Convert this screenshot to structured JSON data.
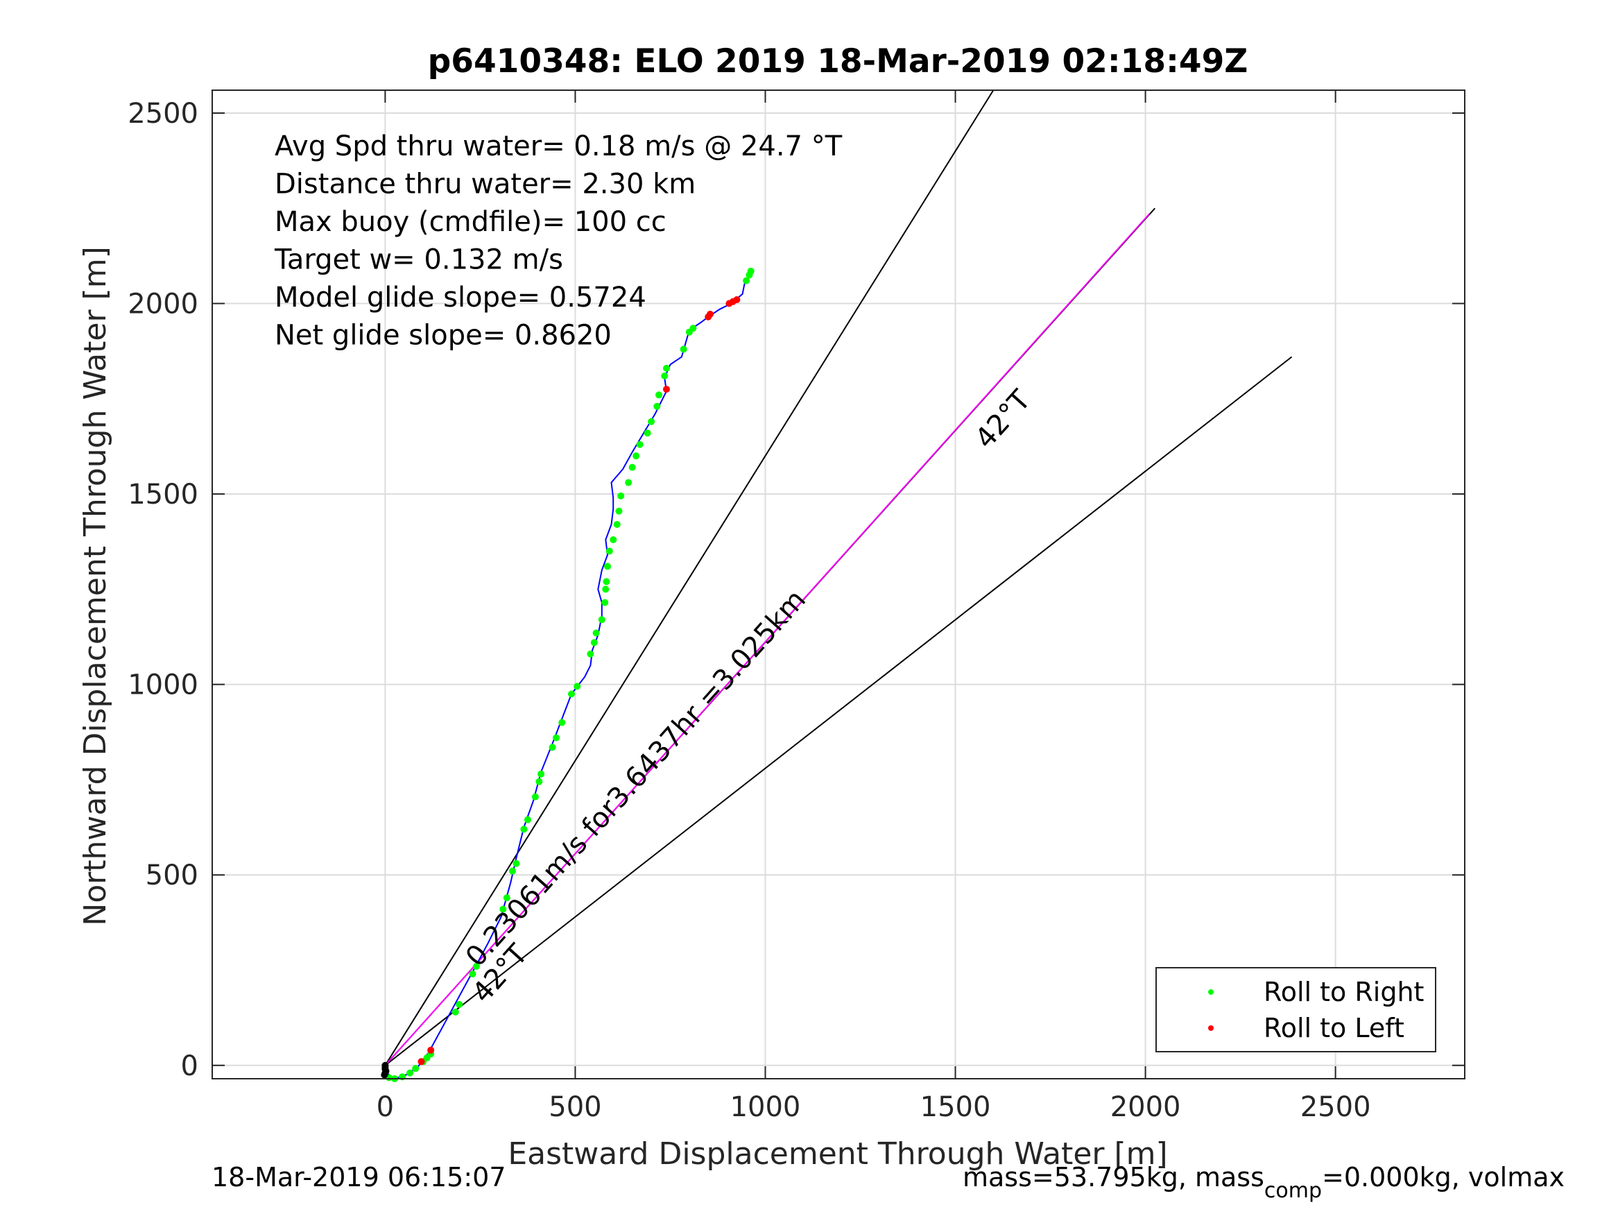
{
  "chart_data": {
    "type": "line",
    "title": "p6410348: ELO 2019 18-Mar-2019 02:18:49Z",
    "xlabel": "Eastward Displacement Through Water [m]",
    "ylabel": "Northward Displacement Through Water [m]",
    "xlim": [
      -455,
      2840
    ],
    "ylim": [
      -35,
      2560
    ],
    "xticks": [
      0,
      500,
      1000,
      1500,
      2000,
      2500
    ],
    "yticks": [
      0,
      500,
      1000,
      1500,
      2000,
      2500
    ],
    "grid": true,
    "legend": {
      "placement": "bottom-right",
      "entries": [
        "Roll to Right",
        "Roll to Left"
      ]
    },
    "annotations": [
      "Avg Spd thru water=  0.18 m/s @  24.7 °T",
      "Distance thru water=  2.30 km",
      "Max buoy (cmdfile)= 100 cc",
      "Target w= 0.132 m/s",
      "Model glide slope= 0.5724",
      "Net glide slope= 0.8620"
    ],
    "rays": [
      {
        "color": "#000000",
        "to": [
          1600,
          2560
        ]
      },
      {
        "color": "#000000",
        "to": [
          2025,
          2250
        ]
      },
      {
        "color": "#000000",
        "to": [
          2385,
          1860
        ]
      },
      {
        "color": "#ff00ff",
        "to": [
          2010,
          2235
        ]
      }
    ],
    "ray_labels": [
      {
        "text": "0.23061m/s for3.6437hr =3.025km",
        "at": [
          245,
          255
        ],
        "angle_deg": 48.2
      },
      {
        "text": "42°T",
        "at": [
          1585,
          1615
        ],
        "angle_deg": 48.2
      },
      {
        "text": "42°T",
        "at": [
          262,
          160
        ],
        "angle_deg": 48.2
      }
    ],
    "series": [
      {
        "name": "track",
        "color": "#0000ff",
        "points": [
          [
            0,
            0
          ],
          [
            5,
            -20
          ],
          [
            25,
            -35
          ],
          [
            55,
            -25
          ],
          [
            85,
            -5
          ],
          [
            115,
            35
          ],
          [
            145,
            90
          ],
          [
            175,
            145
          ],
          [
            205,
            200
          ],
          [
            235,
            255
          ],
          [
            270,
            320
          ],
          [
            305,
            390
          ],
          [
            330,
            480
          ],
          [
            345,
            545
          ],
          [
            365,
            625
          ],
          [
            390,
            695
          ],
          [
            410,
            770
          ],
          [
            440,
            845
          ],
          [
            465,
            910
          ],
          [
            490,
            975
          ],
          [
            525,
            1020
          ],
          [
            540,
            1050
          ],
          [
            545,
            1090
          ],
          [
            560,
            1130
          ],
          [
            570,
            1180
          ],
          [
            570,
            1215
          ],
          [
            560,
            1250
          ],
          [
            570,
            1300
          ],
          [
            585,
            1340
          ],
          [
            580,
            1380
          ],
          [
            595,
            1420
          ],
          [
            600,
            1460
          ],
          [
            600,
            1490
          ],
          [
            595,
            1530
          ],
          [
            625,
            1565
          ],
          [
            650,
            1610
          ],
          [
            680,
            1660
          ],
          [
            710,
            1710
          ],
          [
            740,
            1770
          ],
          [
            735,
            1805
          ],
          [
            750,
            1840
          ],
          [
            780,
            1860
          ],
          [
            790,
            1895
          ],
          [
            800,
            1930
          ],
          [
            830,
            1950
          ],
          [
            850,
            1965
          ],
          [
            880,
            1985
          ],
          [
            910,
            2000
          ],
          [
            940,
            2025
          ],
          [
            945,
            2050
          ],
          [
            955,
            2070
          ],
          [
            960,
            2085
          ]
        ]
      },
      {
        "name": "Roll to Right",
        "color": "#00ff00",
        "points": [
          [
            10,
            -32
          ],
          [
            25,
            -35
          ],
          [
            45,
            -30
          ],
          [
            65,
            -20
          ],
          [
            80,
            -8
          ],
          [
            100,
            10
          ],
          [
            110,
            20
          ],
          [
            120,
            30
          ],
          [
            185,
            140
          ],
          [
            195,
            160
          ],
          [
            230,
            240
          ],
          [
            240,
            260
          ],
          [
            310,
            410
          ],
          [
            320,
            440
          ],
          [
            335,
            510
          ],
          [
            345,
            530
          ],
          [
            365,
            620
          ],
          [
            375,
            645
          ],
          [
            395,
            705
          ],
          [
            405,
            745
          ],
          [
            410,
            765
          ],
          [
            440,
            835
          ],
          [
            450,
            860
          ],
          [
            465,
            900
          ],
          [
            490,
            975
          ],
          [
            505,
            995
          ],
          [
            540,
            1080
          ],
          [
            550,
            1110
          ],
          [
            555,
            1135
          ],
          [
            570,
            1170
          ],
          [
            578,
            1215
          ],
          [
            580,
            1250
          ],
          [
            582,
            1270
          ],
          [
            585,
            1310
          ],
          [
            590,
            1350
          ],
          [
            600,
            1380
          ],
          [
            610,
            1420
          ],
          [
            615,
            1455
          ],
          [
            620,
            1495
          ],
          [
            640,
            1530
          ],
          [
            650,
            1570
          ],
          [
            660,
            1600
          ],
          [
            670,
            1630
          ],
          [
            690,
            1660
          ],
          [
            700,
            1690
          ],
          [
            715,
            1730
          ],
          [
            720,
            1760
          ],
          [
            735,
            1810
          ],
          [
            740,
            1830
          ],
          [
            785,
            1880
          ],
          [
            800,
            1925
          ],
          [
            810,
            1935
          ],
          [
            950,
            2060
          ],
          [
            958,
            2075
          ],
          [
            962,
            2085
          ]
        ]
      },
      {
        "name": "Roll to Left",
        "color": "#ff0000",
        "points": [
          [
            95,
            10
          ],
          [
            120,
            40
          ],
          [
            740,
            1775
          ],
          [
            850,
            1965
          ],
          [
            855,
            1972
          ],
          [
            905,
            2000
          ],
          [
            915,
            2005
          ],
          [
            925,
            2010
          ]
        ]
      },
      {
        "name": "start",
        "color": "#000000",
        "points": [
          [
            0,
            -5
          ],
          [
            0,
            -10
          ],
          [
            2,
            -15
          ],
          [
            0,
            -20
          ],
          [
            -2,
            -25
          ],
          [
            0,
            0
          ]
        ]
      }
    ]
  },
  "footer": {
    "left": "18-Mar-2019 06:15:07",
    "right_prefix": "mass=53.795kg, mass",
    "right_sub": "comp",
    "right_suffix": "=0.000kg, volmax"
  }
}
